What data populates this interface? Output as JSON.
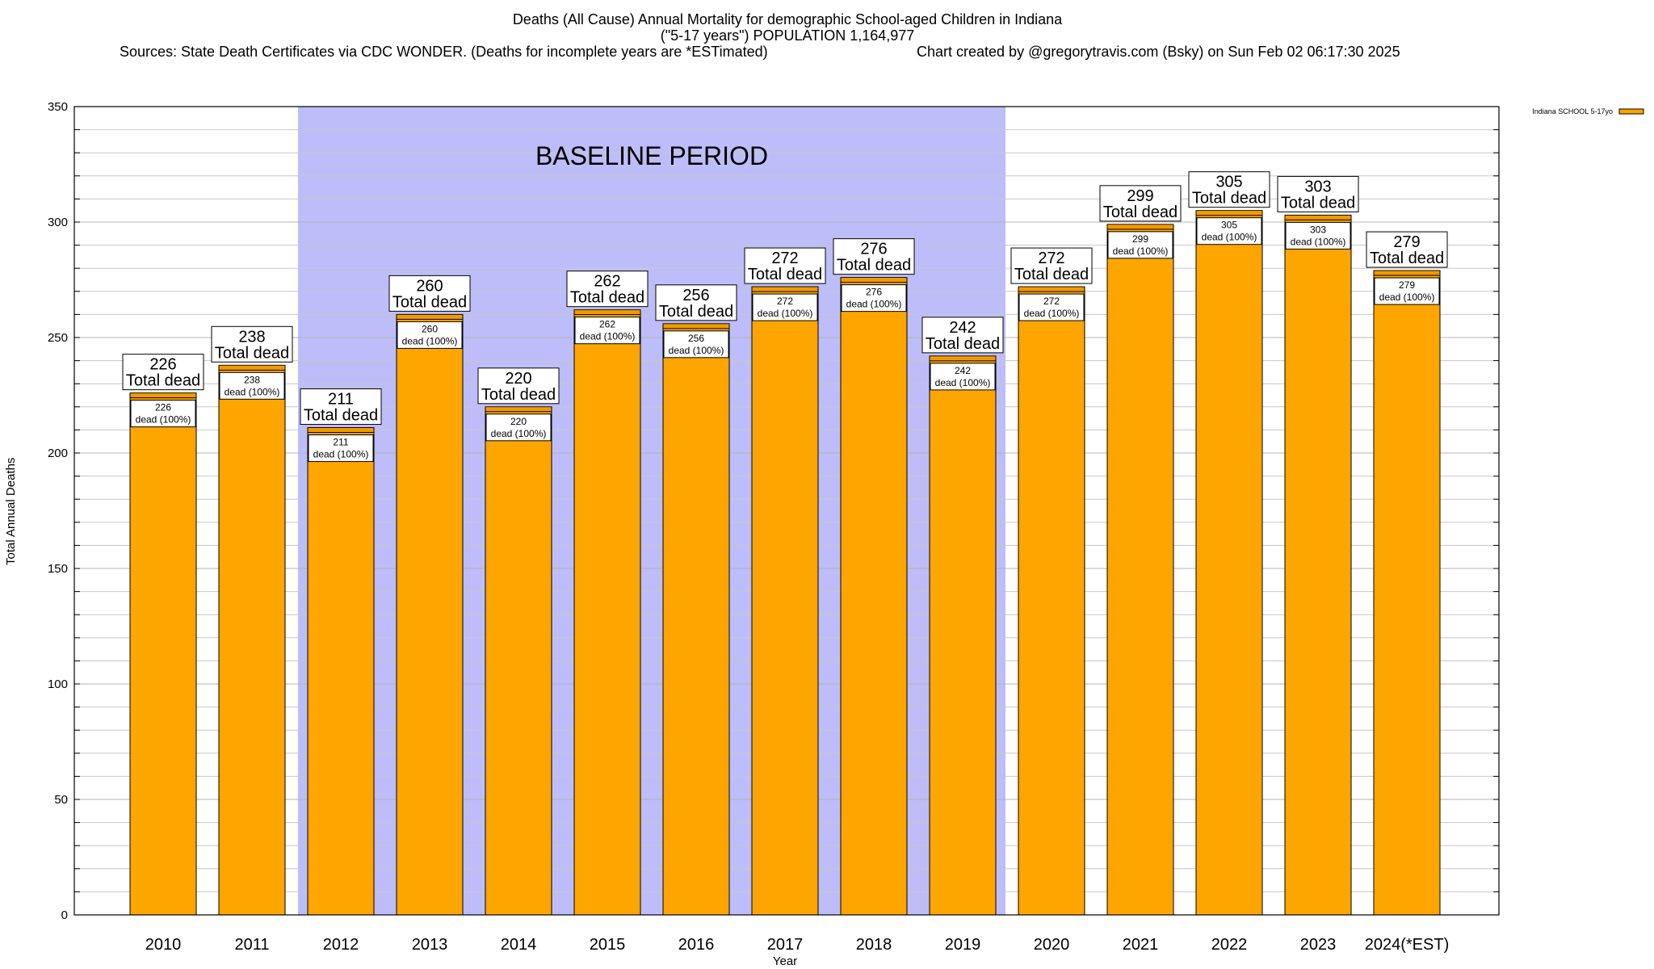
{
  "title_lines": [
    "Deaths (All Cause) Annual Mortality for demographic School-aged Children in Indiana",
    "(\"5-17 years\") POPULATION 1,164,977",
    "Sources: State Death Certificates via CDC WONDER. (Deaths for incomplete years are *ESTimated)",
    "Chart created by @gregorytravis.com (Bsky) on Sun Feb 02 06:17:30 2025"
  ],
  "chart_data": {
    "type": "bar",
    "categories": [
      "2010",
      "2011",
      "2012",
      "2013",
      "2014",
      "2015",
      "2016",
      "2017",
      "2018",
      "2019",
      "2020",
      "2021",
      "2022",
      "2023",
      "2024(*EST)"
    ],
    "series": [
      {
        "name": "Indiana SCHOOL 5-17yo",
        "values": [
          226,
          238,
          211,
          260,
          220,
          262,
          256,
          272,
          276,
          242,
          272,
          299,
          305,
          303,
          279
        ]
      }
    ],
    "top_label_suffix": "Total dead",
    "inner_label_suffix": "dead (100%)",
    "xlabel": "Year",
    "ylabel": "Total Annual Deaths",
    "ylim": [
      0,
      350
    ],
    "yticks": [
      0,
      50,
      100,
      150,
      200,
      250,
      300,
      350
    ],
    "minor_grid_step": 10,
    "grid": true,
    "legend_position": "top-right",
    "baseline_band": {
      "label": "BASELINE PERIOD",
      "from": "2012",
      "to": "2019"
    },
    "colors": {
      "bar": "#FFA500",
      "bar_cap": "#F29A00",
      "band": "#BDBDFA",
      "grid": "#C8C8C8",
      "axis": "#000000"
    }
  }
}
